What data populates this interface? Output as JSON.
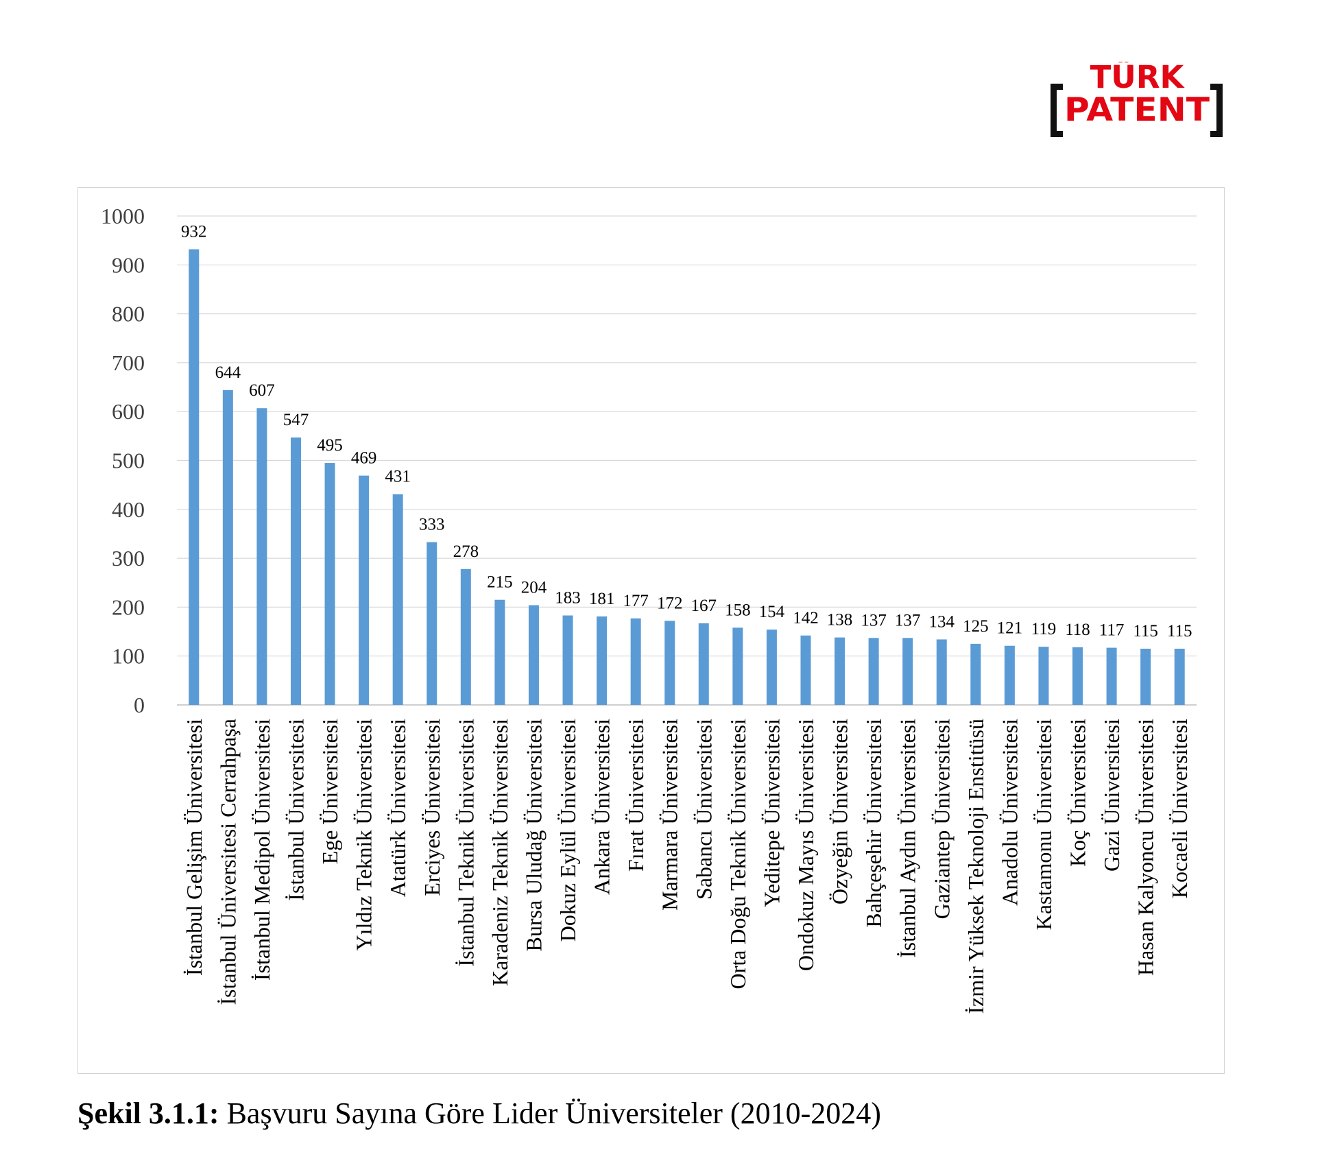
{
  "logo": {
    "line1": "TÜRK",
    "line2": "PATENT",
    "color": "#e30613"
  },
  "caption": {
    "label": "Şekil 3.1.1:",
    "text": " Başvuru Sayına Göre Lider Üniversiteler (2010-2024)"
  },
  "chart_data": {
    "type": "bar",
    "title": "",
    "xlabel": "",
    "ylabel": "",
    "ylim": [
      0,
      1000
    ],
    "yticks": [
      0,
      100,
      200,
      300,
      400,
      500,
      600,
      700,
      800,
      900,
      1000
    ],
    "grid": true,
    "bar_color": "#5b9bd5",
    "categories": [
      "İstanbul Gelişim Üniversitesi",
      "İstanbul Üniversitesi Cerrahpaşa",
      "İstanbul Medipol Üniversitesi",
      "İstanbul Üniversitesi",
      "Ege Üniversitesi",
      "Yıldız Teknik Üniversitesi",
      "Atatürk Üniversitesi",
      "Erciyes Üniversitesi",
      "İstanbul Teknik Üniversitesi",
      "Karadeniz Teknik Üniversitesi",
      "Bursa Uludağ Üniversitesi",
      "Dokuz Eylül Üniversitesi",
      "Ankara Üniversitesi",
      "Fırat Üniversitesi",
      "Marmara Üniversitesi",
      "Sabancı Üniversitesi",
      "Orta Doğu Teknik Üniversitesi",
      "Yeditepe Üniversitesi",
      "Ondokuz Mayıs Üniversitesi",
      "Özyeğin Üniversitesi",
      "Bahçeşehir Üniversitesi",
      "İstanbul Aydın Üniversitesi",
      "Gaziantep Üniversitesi",
      "İzmir Yüksek Teknoloji Enstitüsü",
      "Anadolu Üniversitesi",
      "Kastamonu Üniversitesi",
      "Koç Üniversitesi",
      "Gazi Üniversitesi",
      "Hasan Kalyoncu Üniversitesi",
      "Kocaeli Üniversitesi"
    ],
    "values": [
      932,
      644,
      607,
      547,
      495,
      469,
      431,
      333,
      278,
      215,
      204,
      183,
      181,
      177,
      172,
      167,
      158,
      154,
      142,
      138,
      137,
      137,
      134,
      125,
      121,
      119,
      118,
      117,
      115,
      115
    ]
  }
}
